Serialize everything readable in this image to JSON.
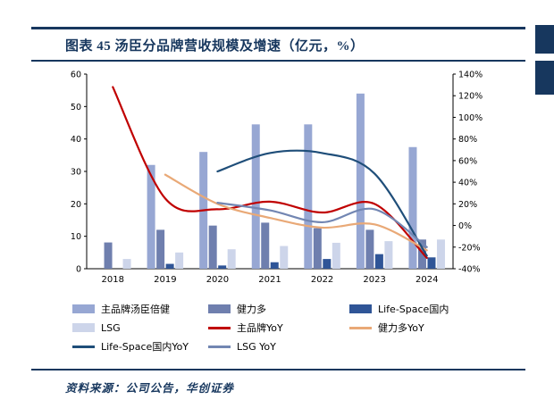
{
  "header": {
    "title": "图表 45  汤臣分品牌营收规模及增速（亿元，%）"
  },
  "footer": {
    "source": "资料来源：公司公告，华创证券"
  },
  "colors": {
    "accent": "#17375E",
    "axis": "#000000"
  },
  "chart_data": {
    "type": "bar",
    "subtype": "combo-bar-line-dual-axis",
    "categories": [
      "2018",
      "2019",
      "2020",
      "2021",
      "2022",
      "2023",
      "2024"
    ],
    "bar_series": [
      {
        "name": "主品牌汤臣倍健",
        "color": "#97A7D3",
        "axis": "left",
        "values": [
          null,
          32,
          36,
          44.5,
          44.5,
          54,
          37.5
        ]
      },
      {
        "name": "健力多",
        "color": "#6F7FAE",
        "axis": "left",
        "values": [
          8.1,
          12,
          13.3,
          14.2,
          12.5,
          12,
          9
        ]
      },
      {
        "name": "Life-Space国内",
        "color": "#2F5597",
        "axis": "left",
        "values": [
          null,
          1.5,
          1,
          2,
          3,
          4.5,
          3.5
        ]
      },
      {
        "name": "LSG",
        "color": "#CDD5EA",
        "axis": "left",
        "values": [
          3,
          5,
          6,
          7,
          8,
          8.5,
          9
        ]
      }
    ],
    "line_series": [
      {
        "name": "主品牌YoY",
        "color": "#C00000",
        "axis": "right",
        "values": [
          128,
          25,
          15,
          22,
          12,
          20,
          -30
        ]
      },
      {
        "name": "健力多YoY",
        "color": "#E9A977",
        "axis": "right",
        "values": [
          null,
          47,
          20,
          7,
          -2,
          1,
          -23
        ]
      },
      {
        "name": "Life-Space国内YoY",
        "color": "#1F4E79",
        "axis": "right",
        "values": [
          null,
          null,
          50,
          67,
          67,
          48,
          -28
        ]
      },
      {
        "name": "LSG YoY",
        "color": "#7286B2",
        "axis": "right",
        "values": [
          null,
          null,
          21,
          14,
          3,
          15,
          -20
        ]
      }
    ],
    "left_axis": {
      "min": 0,
      "max": 60,
      "step": 10,
      "tick_labels": [
        "0",
        "10",
        "20",
        "30",
        "40",
        "50",
        "60"
      ]
    },
    "right_axis": {
      "min": -40,
      "max": 140,
      "step": 20,
      "tick_labels": [
        "-40%",
        "-20%",
        "0%",
        "20%",
        "40%",
        "60%",
        "80%",
        "100%",
        "120%",
        "140%"
      ]
    },
    "grid": false,
    "legend_position": "bottom",
    "legend_columns": 3
  }
}
